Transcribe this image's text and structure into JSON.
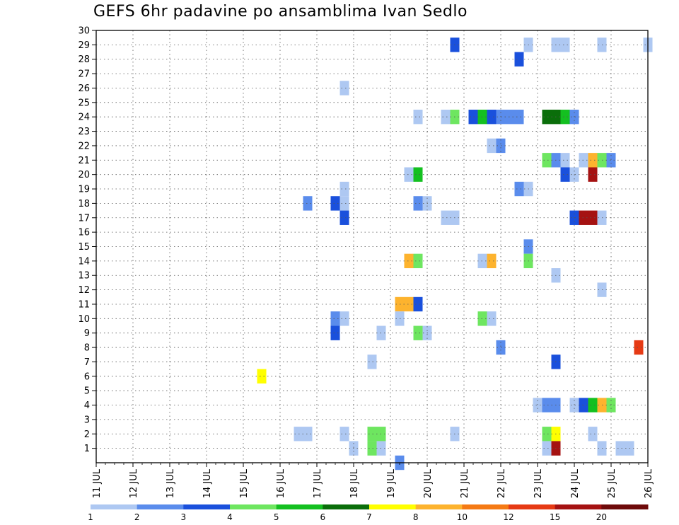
{
  "chart_data": {
    "type": "heatmap",
    "title": "GEFS 6hr padavine po ansamblima Ivan Sedlo",
    "xlabel": "",
    "ylabel": "",
    "x_tick_labels": [
      "11 JUL",
      "12 JUL",
      "13 JUL",
      "14 JUL",
      "15 JUL",
      "16 JUL",
      "17 JUL",
      "18 JUL",
      "19 JUL",
      "20 JUL",
      "21 JUL",
      "22 JUL",
      "23 JUL",
      "24 JUL",
      "25 JUL",
      "26 JUL"
    ],
    "xlim_days": [
      11,
      26
    ],
    "y_tick_labels": [
      "1",
      "2",
      "3",
      "4",
      "5",
      "6",
      "7",
      "8",
      "9",
      "10",
      "11",
      "12",
      "13",
      "14",
      "15",
      "16",
      "17",
      "18",
      "19",
      "20",
      "21",
      "22",
      "23",
      "24",
      "25",
      "26",
      "27",
      "28",
      "29",
      "30"
    ],
    "ylim": [
      0,
      30
    ],
    "grid": true,
    "time_step_hours": 6,
    "colorbar": {
      "labels": [
        "1",
        "2",
        "3",
        "4",
        "5",
        "6",
        "7",
        "8",
        "10",
        "12",
        "15",
        "20"
      ],
      "colors": [
        "#aec8f2",
        "#5a8cec",
        "#1a50dc",
        "#6ee660",
        "#14c020",
        "#0a6e0a",
        "#ffff00",
        "#fdb32e",
        "#f57a14",
        "#e63a14",
        "#a51212",
        "#6e0a0a"
      ]
    },
    "cells": [
      [
        29,
        20.75,
        3
      ],
      [
        29,
        22.75,
        1
      ],
      [
        29,
        23.5,
        1
      ],
      [
        29,
        23.75,
        1
      ],
      [
        29,
        24.75,
        1
      ],
      [
        29,
        26,
        1
      ],
      [
        28,
        22.5,
        3
      ],
      [
        26,
        17.75,
        1
      ],
      [
        24,
        19.75,
        1
      ],
      [
        24,
        20.5,
        1
      ],
      [
        24,
        20.75,
        4
      ],
      [
        24,
        21.25,
        3
      ],
      [
        24,
        21.5,
        5
      ],
      [
        24,
        21.75,
        3
      ],
      [
        24,
        22,
        2
      ],
      [
        24,
        22.25,
        2
      ],
      [
        24,
        22.5,
        2
      ],
      [
        24,
        23.25,
        6
      ],
      [
        24,
        23.5,
        6
      ],
      [
        24,
        23.75,
        5
      ],
      [
        24,
        24,
        2
      ],
      [
        22,
        21.75,
        1
      ],
      [
        22,
        22,
        2
      ],
      [
        21,
        23.25,
        4
      ],
      [
        21,
        23.5,
        2
      ],
      [
        21,
        23.75,
        1
      ],
      [
        21,
        24.25,
        1
      ],
      [
        21,
        24.5,
        8
      ],
      [
        21,
        24.75,
        4
      ],
      [
        21,
        25,
        2
      ],
      [
        20,
        19.5,
        1
      ],
      [
        20,
        19.75,
        5
      ],
      [
        20,
        23.75,
        3
      ],
      [
        20,
        24,
        1
      ],
      [
        20,
        24.5,
        11
      ],
      [
        19,
        17.75,
        1
      ],
      [
        19,
        22.5,
        2
      ],
      [
        19,
        22.75,
        1
      ],
      [
        18,
        16.75,
        2
      ],
      [
        18,
        17.5,
        3
      ],
      [
        18,
        17.75,
        1
      ],
      [
        18,
        19.75,
        2
      ],
      [
        18,
        20,
        1
      ],
      [
        17,
        17.75,
        3
      ],
      [
        17,
        20.5,
        1
      ],
      [
        17,
        20.75,
        1
      ],
      [
        17,
        24,
        3
      ],
      [
        17,
        24.25,
        11
      ],
      [
        17,
        24.5,
        11
      ],
      [
        17,
        24.75,
        1
      ],
      [
        15,
        22.75,
        2
      ],
      [
        14,
        19.5,
        8
      ],
      [
        14,
        19.75,
        4
      ],
      [
        14,
        21.5,
        1
      ],
      [
        14,
        21.75,
        8
      ],
      [
        14,
        22.75,
        4
      ],
      [
        13,
        23.5,
        1
      ],
      [
        12,
        24.75,
        1
      ],
      [
        11,
        19.25,
        8
      ],
      [
        11,
        19.5,
        8
      ],
      [
        11,
        19.75,
        3
      ],
      [
        10,
        17.5,
        2
      ],
      [
        10,
        17.75,
        1
      ],
      [
        10,
        19.25,
        1
      ],
      [
        10,
        21.5,
        4
      ],
      [
        10,
        21.75,
        1
      ],
      [
        9,
        17.5,
        3
      ],
      [
        9,
        18.75,
        1
      ],
      [
        9,
        19.75,
        4
      ],
      [
        9,
        20,
        1
      ],
      [
        8,
        22,
        2
      ],
      [
        8,
        25.75,
        10
      ],
      [
        7,
        18.5,
        1
      ],
      [
        7,
        23.5,
        3
      ],
      [
        6,
        15.5,
        7
      ],
      [
        4,
        23,
        1
      ],
      [
        4,
        23.25,
        2
      ],
      [
        4,
        23.5,
        2
      ],
      [
        4,
        24,
        1
      ],
      [
        4,
        24.25,
        3
      ],
      [
        4,
        24.5,
        5
      ],
      [
        4,
        24.75,
        8
      ],
      [
        4,
        25,
        4
      ],
      [
        2,
        16.5,
        1
      ],
      [
        2,
        16.75,
        1
      ],
      [
        2,
        17.75,
        1
      ],
      [
        2,
        18.5,
        4
      ],
      [
        2,
        18.75,
        4
      ],
      [
        2,
        20.75,
        1
      ],
      [
        2,
        23.25,
        4
      ],
      [
        2,
        23.5,
        7
      ],
      [
        2,
        24.5,
        1
      ],
      [
        1,
        18,
        1
      ],
      [
        1,
        18.5,
        4
      ],
      [
        1,
        18.75,
        1
      ],
      [
        1,
        23.25,
        1
      ],
      [
        1,
        23.5,
        11
      ],
      [
        1,
        24.75,
        1
      ],
      [
        1,
        25.25,
        1
      ],
      [
        1,
        25.5,
        1
      ],
      [
        0,
        19.25,
        2
      ]
    ]
  }
}
